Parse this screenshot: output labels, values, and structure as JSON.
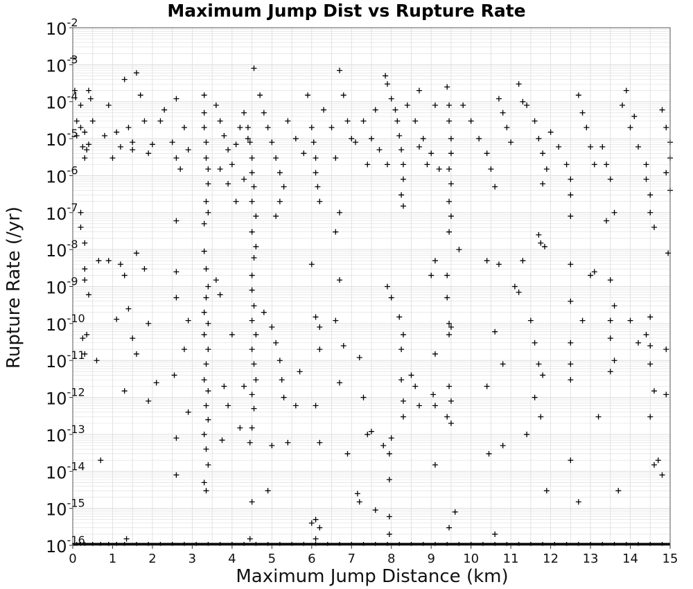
{
  "chart_data": {
    "type": "scatter",
    "title": "Maximum Jump Dist vs Rupture Rate",
    "xlabel": "Maximum Jump Distance (km)",
    "ylabel": "Rupture Rate (/yr)",
    "xlim": [
      0,
      15
    ],
    "ylim_log10": [
      -16,
      -2
    ],
    "yscale": "log",
    "grid": true,
    "marker": "+",
    "marker_color": "#000000",
    "grid_color": "#dcdcdc",
    "x_ticks": [
      "0",
      "1",
      "2",
      "3",
      "4",
      "5",
      "6",
      "7",
      "8",
      "9",
      "10",
      "11",
      "12",
      "13",
      "14",
      "15"
    ],
    "y_ticks": [
      {
        "base": "10",
        "exp": "-2"
      },
      {
        "base": "10",
        "exp": "-3"
      },
      {
        "base": "10",
        "exp": "-4"
      },
      {
        "base": "10",
        "exp": "-5"
      },
      {
        "base": "10",
        "exp": "-6"
      },
      {
        "base": "10",
        "exp": "-7"
      },
      {
        "base": "10",
        "exp": "-8"
      },
      {
        "base": "10",
        "exp": "-9"
      },
      {
        "base": "10",
        "exp": "-10"
      },
      {
        "base": "10",
        "exp": "-11"
      },
      {
        "base": "10",
        "exp": "-12"
      },
      {
        "base": "10",
        "exp": "-13"
      },
      {
        "base": "10",
        "exp": "-14"
      },
      {
        "base": "10",
        "exp": "-15"
      },
      {
        "base": "10",
        "exp": "-16"
      }
    ],
    "points": [
      [
        0.0,
        0.0015
      ],
      [
        0.05,
        0.0002
      ],
      [
        0.1,
        3e-05
      ],
      [
        0.1,
        1.2e-05
      ],
      [
        0.2,
        8e-05
      ],
      [
        0.2,
        2e-05
      ],
      [
        0.25,
        6e-06
      ],
      [
        0.3,
        3e-06
      ],
      [
        0.3,
        1.5e-05
      ],
      [
        0.35,
        5e-06
      ],
      [
        0.4,
        0.0002
      ],
      [
        0.4,
        7e-06
      ],
      [
        0.45,
        0.00012
      ],
      [
        0.5,
        3e-05
      ],
      [
        0.2,
        1e-07
      ],
      [
        0.2,
        4e-08
      ],
      [
        0.3,
        1.5e-08
      ],
      [
        0.3,
        3e-09
      ],
      [
        0.4,
        6e-10
      ],
      [
        0.3,
        1.5e-09
      ],
      [
        0.35,
        5e-11
      ],
      [
        0.3,
        1.5e-11
      ],
      [
        0.25,
        4e-11
      ],
      [
        0.6,
        1e-11
      ],
      [
        0.65,
        5e-09
      ],
      [
        0.7,
        2e-14
      ],
      [
        0.8,
        1.2e-05
      ],
      [
        0.9,
        8e-05
      ],
      [
        1.0,
        3e-06
      ],
      [
        1.1,
        1.5e-05
      ],
      [
        1.2,
        6e-06
      ],
      [
        1.3,
        0.0004
      ],
      [
        1.4,
        2e-05
      ],
      [
        1.5,
        5e-06
      ],
      [
        1.6,
        0.0006
      ],
      [
        1.7,
        0.00015
      ],
      [
        1.8,
        3e-05
      ],
      [
        1.9,
        4e-06
      ],
      [
        1.5,
        8e-06
      ],
      [
        0.9,
        5e-09
      ],
      [
        1.1,
        1.3e-10
      ],
      [
        1.2,
        4e-09
      ],
      [
        1.3,
        2e-09
      ],
      [
        1.4,
        2.5e-10
      ],
      [
        1.5,
        4e-11
      ],
      [
        1.6,
        1.5e-11
      ],
      [
        1.3,
        1.5e-12
      ],
      [
        1.35,
        1.5e-16
      ],
      [
        1.6,
        8e-09
      ],
      [
        1.8,
        3e-09
      ],
      [
        1.9,
        1e-10
      ],
      [
        1.9,
        8e-13
      ],
      [
        2.1,
        2.5e-12
      ],
      [
        2.0,
        7e-06
      ],
      [
        2.2,
        3e-05
      ],
      [
        2.3,
        6e-05
      ],
      [
        2.5,
        8e-06
      ],
      [
        2.6,
        0.00012
      ],
      [
        2.8,
        2e-05
      ],
      [
        2.9,
        5e-06
      ],
      [
        2.6,
        3e-06
      ],
      [
        2.7,
        1.5e-06
      ],
      [
        2.6,
        6e-08
      ],
      [
        2.6,
        2.5e-09
      ],
      [
        2.6,
        5e-10
      ],
      [
        2.55,
        4e-12
      ],
      [
        2.6,
        8e-14
      ],
      [
        2.6,
        8e-15
      ],
      [
        2.9,
        1.2e-10
      ],
      [
        2.9,
        4e-13
      ],
      [
        2.8,
        2e-11
      ],
      [
        3.3,
        0.00015
      ],
      [
        3.3,
        5e-05
      ],
      [
        3.3,
        2e-05
      ],
      [
        3.35,
        8e-06
      ],
      [
        3.35,
        3e-06
      ],
      [
        3.4,
        1.5e-06
      ],
      [
        3.4,
        6e-07
      ],
      [
        3.35,
        2e-07
      ],
      [
        3.4,
        1e-07
      ],
      [
        3.3,
        5e-08
      ],
      [
        3.3,
        9e-09
      ],
      [
        3.35,
        3e-09
      ],
      [
        3.4,
        1e-09
      ],
      [
        3.35,
        5e-10
      ],
      [
        3.3,
        2e-10
      ],
      [
        3.4,
        1e-10
      ],
      [
        3.3,
        5e-11
      ],
      [
        3.4,
        2e-11
      ],
      [
        3.35,
        8e-12
      ],
      [
        3.3,
        3e-12
      ],
      [
        3.4,
        1.5e-12
      ],
      [
        3.35,
        6e-13
      ],
      [
        3.4,
        2.5e-13
      ],
      [
        3.3,
        1e-13
      ],
      [
        3.35,
        4e-14
      ],
      [
        3.4,
        1.5e-14
      ],
      [
        3.3,
        5e-15
      ],
      [
        3.35,
        3e-15
      ],
      [
        3.6,
        8e-05
      ],
      [
        3.7,
        3e-05
      ],
      [
        3.8,
        1.2e-05
      ],
      [
        3.9,
        5e-06
      ],
      [
        4.0,
        2e-06
      ],
      [
        4.1,
        7e-06
      ],
      [
        4.2,
        2e-05
      ],
      [
        4.3,
        5e-05
      ],
      [
        4.4,
        1e-05
      ],
      [
        3.7,
        1.5e-06
      ],
      [
        3.9,
        6e-07
      ],
      [
        4.1,
        2e-07
      ],
      [
        4.3,
        8e-07
      ],
      [
        3.6,
        1.5e-09
      ],
      [
        3.7,
        6e-10
      ],
      [
        3.8,
        2e-12
      ],
      [
        3.9,
        6e-13
      ],
      [
        3.75,
        7e-14
      ],
      [
        4.0,
        5e-11
      ],
      [
        4.2,
        1.5e-13
      ],
      [
        4.3,
        2e-12
      ],
      [
        4.4,
        2e-05
      ],
      [
        4.45,
        8e-06
      ],
      [
        4.5,
        3e-06
      ],
      [
        4.5,
        1.2e-06
      ],
      [
        4.55,
        5e-07
      ],
      [
        4.5,
        2e-07
      ],
      [
        4.6,
        8e-08
      ],
      [
        4.5,
        3e-08
      ],
      [
        4.6,
        1.2e-08
      ],
      [
        4.55,
        6e-09
      ],
      [
        4.5,
        2e-09
      ],
      [
        4.5,
        8e-10
      ],
      [
        4.55,
        3e-10
      ],
      [
        4.5,
        1.2e-10
      ],
      [
        4.6,
        5e-11
      ],
      [
        4.5,
        2e-11
      ],
      [
        4.55,
        8e-12
      ],
      [
        4.6,
        3e-12
      ],
      [
        4.5,
        1.2e-12
      ],
      [
        4.55,
        5e-13
      ],
      [
        4.5,
        1.5e-13
      ],
      [
        4.45,
        6e-14
      ],
      [
        4.5,
        1.5e-15
      ],
      [
        4.45,
        1.5e-16
      ],
      [
        4.55,
        0.0008
      ],
      [
        4.7,
        0.00015
      ],
      [
        4.8,
        5e-05
      ],
      [
        4.9,
        2e-05
      ],
      [
        5.0,
        8e-06
      ],
      [
        5.1,
        3e-06
      ],
      [
        5.2,
        1.2e-06
      ],
      [
        5.3,
        5e-07
      ],
      [
        5.2,
        2e-07
      ],
      [
        5.1,
        8e-08
      ],
      [
        5.4,
        3e-05
      ],
      [
        5.6,
        1e-05
      ],
      [
        5.8,
        4e-06
      ],
      [
        5.9,
        0.00015
      ],
      [
        4.8,
        2e-10
      ],
      [
        5.0,
        8e-11
      ],
      [
        5.1,
        3e-11
      ],
      [
        5.2,
        1e-11
      ],
      [
        5.25,
        3e-12
      ],
      [
        5.3,
        1e-12
      ],
      [
        5.0,
        5e-14
      ],
      [
        4.9,
        3e-15
      ],
      [
        5.4,
        6e-14
      ],
      [
        5.6,
        6e-13
      ],
      [
        5.7,
        5e-12
      ],
      [
        6.0,
        2e-05
      ],
      [
        6.05,
        8e-06
      ],
      [
        6.1,
        3e-06
      ],
      [
        6.1,
        1.2e-06
      ],
      [
        6.15,
        5e-07
      ],
      [
        6.2,
        2e-07
      ],
      [
        6.0,
        4e-09
      ],
      [
        6.1,
        1.5e-10
      ],
      [
        6.2,
        8e-11
      ],
      [
        6.2,
        2e-11
      ],
      [
        6.1,
        6e-13
      ],
      [
        6.2,
        6e-14
      ],
      [
        6.0,
        4e-16
      ],
      [
        6.1,
        5e-16
      ],
      [
        6.2,
        3e-16
      ],
      [
        6.1,
        1.5e-16
      ],
      [
        6.3,
        6e-05
      ],
      [
        6.5,
        2e-05
      ],
      [
        6.7,
        0.0007
      ],
      [
        6.8,
        0.00015
      ],
      [
        6.9,
        3e-05
      ],
      [
        7.0,
        1e-05
      ],
      [
        6.6,
        3e-06
      ],
      [
        6.7,
        1e-07
      ],
      [
        6.6,
        3e-08
      ],
      [
        6.7,
        1.5e-09
      ],
      [
        6.6,
        1.2e-10
      ],
      [
        6.8,
        2.5e-11
      ],
      [
        6.9,
        3e-14
      ],
      [
        6.7,
        2.5e-12
      ],
      [
        7.1,
        8e-06
      ],
      [
        7.3,
        3e-05
      ],
      [
        7.5,
        1e-05
      ],
      [
        7.7,
        5e-06
      ],
      [
        7.9,
        2e-06
      ],
      [
        7.6,
        6e-05
      ],
      [
        7.4,
        2e-06
      ],
      [
        7.2,
        1.2e-11
      ],
      [
        7.3,
        1e-12
      ],
      [
        7.4,
        1e-13
      ],
      [
        7.5,
        1.2e-13
      ],
      [
        7.15,
        2.5e-15
      ],
      [
        7.2,
        1.5e-15
      ],
      [
        7.6,
        9e-16
      ],
      [
        7.8,
        5e-14
      ],
      [
        7.85,
        0.0005
      ],
      [
        7.9,
        0.0003
      ],
      [
        8.0,
        0.00012
      ],
      [
        8.1,
        6e-05
      ],
      [
        8.15,
        3e-05
      ],
      [
        8.2,
        1.2e-05
      ],
      [
        8.25,
        5e-06
      ],
      [
        8.3,
        2e-06
      ],
      [
        8.3,
        8e-07
      ],
      [
        8.25,
        3e-07
      ],
      [
        8.3,
        1.5e-07
      ],
      [
        7.9,
        1e-09
      ],
      [
        8.0,
        5e-10
      ],
      [
        8.2,
        1.5e-10
      ],
      [
        8.3,
        5e-11
      ],
      [
        8.25,
        2e-11
      ],
      [
        8.25,
        3e-12
      ],
      [
        8.3,
        8e-13
      ],
      [
        8.3,
        3e-13
      ],
      [
        7.95,
        3e-14
      ],
      [
        7.95,
        6e-15
      ],
      [
        7.95,
        6e-16
      ],
      [
        7.95,
        2e-16
      ],
      [
        8.0,
        8e-14
      ],
      [
        8.4,
        8e-05
      ],
      [
        8.6,
        3e-05
      ],
      [
        8.8,
        1e-05
      ],
      [
        9.0,
        4e-06
      ],
      [
        9.2,
        1.5e-06
      ],
      [
        8.7,
        0.0002
      ],
      [
        9.1,
        8e-05
      ],
      [
        8.7,
        6e-06
      ],
      [
        8.9,
        2e-06
      ],
      [
        8.6,
        2e-12
      ],
      [
        8.7,
        6e-13
      ],
      [
        8.5,
        4e-12
      ],
      [
        9.0,
        2e-09
      ],
      [
        9.1,
        5e-09
      ],
      [
        9.05,
        1.2e-12
      ],
      [
        9.1,
        1.5e-11
      ],
      [
        9.1,
        6e-13
      ],
      [
        9.1,
        1.5e-14
      ],
      [
        9.4,
        0.00025
      ],
      [
        9.45,
        8e-05
      ],
      [
        9.45,
        3e-05
      ],
      [
        9.5,
        1e-05
      ],
      [
        9.5,
        4e-06
      ],
      [
        9.45,
        1.5e-06
      ],
      [
        9.5,
        6e-07
      ],
      [
        9.45,
        2e-07
      ],
      [
        9.5,
        8e-08
      ],
      [
        9.45,
        3e-08
      ],
      [
        9.4,
        2e-09
      ],
      [
        9.4,
        5e-10
      ],
      [
        9.45,
        1e-10
      ],
      [
        9.45,
        5e-11
      ],
      [
        9.5,
        8e-11
      ],
      [
        9.45,
        2e-12
      ],
      [
        9.5,
        8e-13
      ],
      [
        9.4,
        3e-13
      ],
      [
        9.5,
        2e-13
      ],
      [
        9.45,
        3e-16
      ],
      [
        9.6,
        8e-16
      ],
      [
        9.7,
        1e-08
      ],
      [
        9.8,
        8e-05
      ],
      [
        10.0,
        3e-05
      ],
      [
        10.2,
        1e-05
      ],
      [
        10.4,
        4e-06
      ],
      [
        10.5,
        1.5e-06
      ],
      [
        10.6,
        5e-07
      ],
      [
        10.7,
        0.00012
      ],
      [
        10.8,
        5e-05
      ],
      [
        10.9,
        2e-05
      ],
      [
        11.0,
        8e-06
      ],
      [
        11.2,
        0.0003
      ],
      [
        11.3,
        0.0001
      ],
      [
        10.4,
        5e-09
      ],
      [
        10.6,
        6e-11
      ],
      [
        10.7,
        4e-09
      ],
      [
        10.4,
        2e-12
      ],
      [
        10.45,
        3e-14
      ],
      [
        10.6,
        2e-16
      ],
      [
        10.8,
        5e-14
      ],
      [
        10.8,
        8e-12
      ],
      [
        11.1,
        1e-09
      ],
      [
        11.2,
        7e-10
      ],
      [
        11.3,
        5e-09
      ],
      [
        11.4,
        8e-05
      ],
      [
        11.6,
        3e-05
      ],
      [
        11.7,
        1e-05
      ],
      [
        11.8,
        4e-06
      ],
      [
        11.9,
        1.5e-06
      ],
      [
        11.8,
        6e-07
      ],
      [
        11.7,
        2.5e-08
      ],
      [
        11.75,
        1.5e-08
      ],
      [
        11.85,
        1.2e-08
      ],
      [
        11.5,
        1.2e-10
      ],
      [
        11.6,
        3e-11
      ],
      [
        11.7,
        8e-12
      ],
      [
        11.8,
        4e-12
      ],
      [
        11.75,
        3e-13
      ],
      [
        11.6,
        1e-12
      ],
      [
        11.9,
        3e-15
      ],
      [
        11.4,
        1e-13
      ],
      [
        12.0,
        1.5e-05
      ],
      [
        12.2,
        6e-06
      ],
      [
        12.4,
        2e-06
      ],
      [
        12.5,
        8e-07
      ],
      [
        12.5,
        3e-07
      ],
      [
        12.5,
        8e-08
      ],
      [
        12.5,
        4e-09
      ],
      [
        12.5,
        4e-10
      ],
      [
        12.5,
        3e-11
      ],
      [
        12.5,
        8e-12
      ],
      [
        12.5,
        3e-12
      ],
      [
        12.5,
        2e-14
      ],
      [
        12.7,
        0.00015
      ],
      [
        12.8,
        5e-05
      ],
      [
        12.9,
        2e-05
      ],
      [
        13.0,
        6e-06
      ],
      [
        13.1,
        2e-06
      ],
      [
        12.7,
        1.5e-15
      ],
      [
        12.8,
        1.2e-10
      ],
      [
        13.0,
        2e-09
      ],
      [
        13.1,
        2.5e-09
      ],
      [
        13.2,
        3e-13
      ],
      [
        13.3,
        6e-06
      ],
      [
        13.4,
        2e-06
      ],
      [
        13.5,
        8e-07
      ],
      [
        13.6,
        1e-07
      ],
      [
        13.4,
        6e-08
      ],
      [
        13.5,
        1.5e-09
      ],
      [
        13.6,
        3e-10
      ],
      [
        13.5,
        1.2e-10
      ],
      [
        13.5,
        4e-11
      ],
      [
        13.6,
        1e-11
      ],
      [
        13.5,
        5e-12
      ],
      [
        13.7,
        3e-15
      ],
      [
        13.8,
        8e-05
      ],
      [
        14.0,
        2e-05
      ],
      [
        14.2,
        6e-06
      ],
      [
        14.4,
        2e-06
      ],
      [
        13.9,
        0.0002
      ],
      [
        14.1,
        4e-05
      ],
      [
        14.0,
        1.2e-10
      ],
      [
        14.2,
        3e-11
      ],
      [
        14.4,
        5e-11
      ],
      [
        14.5,
        1.5e-10
      ],
      [
        14.5,
        2.5e-11
      ],
      [
        14.5,
        8e-12
      ],
      [
        14.6,
        1.5e-12
      ],
      [
        14.5,
        3e-13
      ],
      [
        14.6,
        1.5e-14
      ],
      [
        14.7,
        2e-14
      ],
      [
        14.8,
        8e-15
      ],
      [
        14.4,
        8e-07
      ],
      [
        14.5,
        3e-07
      ],
      [
        14.5,
        1e-07
      ],
      [
        14.6,
        4e-08
      ],
      [
        14.8,
        6e-05
      ],
      [
        14.9,
        2e-05
      ],
      [
        15.0,
        8e-06
      ],
      [
        15.0,
        3e-06
      ],
      [
        14.9,
        1.2e-06
      ],
      [
        15.0,
        4e-07
      ],
      [
        14.95,
        8e-09
      ],
      [
        14.9,
        2e-11
      ],
      [
        14.9,
        1.2e-12
      ]
    ],
    "baseline_marks": [
      0.05,
      0.1,
      0.2,
      0.3,
      0.5,
      0.7,
      0.9,
      1.1,
      1.3,
      1.6,
      1.9,
      2.2,
      2.5,
      2.8,
      3.1,
      3.4,
      3.7,
      4.0,
      4.3,
      4.6,
      4.9,
      5.2,
      5.5,
      5.8,
      6.1,
      6.4,
      6.7,
      7.0,
      7.3,
      7.6,
      7.9,
      8.2,
      8.5,
      8.8,
      9.1,
      9.4,
      9.7,
      10.0,
      10.3,
      10.6,
      10.9,
      11.2,
      11.5,
      11.8,
      12.1,
      12.4,
      12.7,
      13.0,
      13.3,
      13.6,
      13.9,
      14.2,
      14.5,
      14.8
    ]
  }
}
